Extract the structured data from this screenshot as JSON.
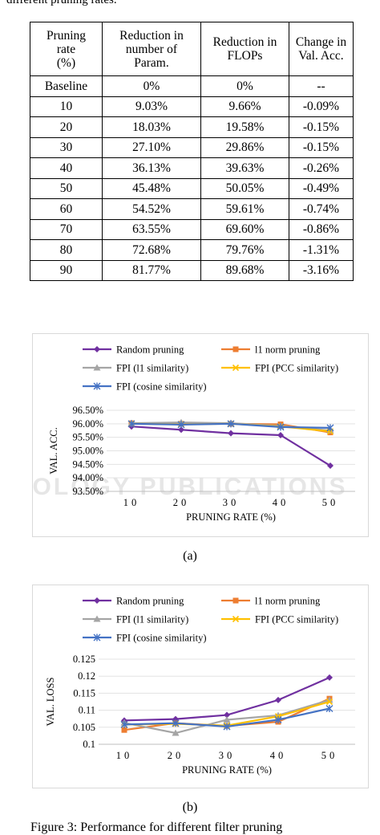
{
  "caption_top": "different pruning rates.",
  "table": {
    "headers": [
      [
        "Pruning",
        "rate",
        "(%)"
      ],
      [
        "Reduction in",
        "number of",
        "Param."
      ],
      [
        "Reduction in",
        "FLOPs"
      ],
      [
        "Change in",
        "Val. Acc."
      ]
    ],
    "rows": [
      [
        "Baseline",
        "0%",
        "0%",
        "--"
      ],
      [
        "10",
        "9.03%",
        "9.66%",
        "-0.09%"
      ],
      [
        "20",
        "18.03%",
        "19.58%",
        "-0.15%"
      ],
      [
        "30",
        "27.10%",
        "29.86%",
        "-0.15%"
      ],
      [
        "40",
        "36.13%",
        "39.63%",
        "-0.26%"
      ],
      [
        "50",
        "45.48%",
        "50.05%",
        "-0.49%"
      ],
      [
        "60",
        "54.52%",
        "59.61%",
        "-0.74%"
      ],
      [
        "70",
        "63.55%",
        "69.60%",
        "-0.86%"
      ],
      [
        "80",
        "72.68%",
        "79.76%",
        "-1.31%"
      ],
      [
        "90",
        "81.77%",
        "89.68%",
        "-3.16%"
      ]
    ]
  },
  "watermark": "OLOGY PUBLICATIONS",
  "chart_data": [
    {
      "type": "line",
      "xlabel": "PRUNING RATE (%)",
      "ylabel": "VAL. ACC.",
      "categories": [
        "10",
        "20",
        "30",
        "40",
        "50"
      ],
      "ylim": [
        93.5,
        96.5
      ],
      "yticks": [
        "93.50%",
        "94.00%",
        "94.50%",
        "95.00%",
        "95.50%",
        "96.00%",
        "96.50%"
      ],
      "legend": "top",
      "series": [
        {
          "name": "Random pruning",
          "color": "#7030a0",
          "marker": "diamond",
          "values": [
            95.9,
            95.78,
            95.65,
            95.58,
            94.45
          ]
        },
        {
          "name": "l1 norm pruning",
          "color": "#ed7d31",
          "marker": "square",
          "values": [
            96.02,
            96.0,
            96.0,
            95.98,
            95.68
          ]
        },
        {
          "name": "FPI (l1 similarity)",
          "color": "#a5a5a5",
          "marker": "triangle",
          "values": [
            96.02,
            96.05,
            96.02,
            95.92,
            95.75
          ]
        },
        {
          "name": "FPI (PCC similarity)",
          "color": "#ffc000",
          "marker": "x",
          "values": [
            96.0,
            95.98,
            96.0,
            95.9,
            95.72
          ]
        },
        {
          "name": "FPI (cosine similarity)",
          "color": "#4472c4",
          "marker": "star",
          "values": [
            96.0,
            95.97,
            96.0,
            95.88,
            95.85
          ]
        }
      ]
    },
    {
      "type": "line",
      "xlabel": "PRUNING RATE (%)",
      "ylabel": "VAL. LOSS",
      "categories": [
        "10",
        "20",
        "30",
        "40",
        "50"
      ],
      "ylim": [
        0.1,
        0.125
      ],
      "yticks": [
        "0.1",
        "0.105",
        "0.11",
        "0.115",
        "0.12",
        "0.125"
      ],
      "legend": "top",
      "series": [
        {
          "name": "Random pruning",
          "color": "#7030a0",
          "marker": "diamond",
          "values": [
            0.107,
            0.1074,
            0.1086,
            0.113,
            0.1196
          ]
        },
        {
          "name": "l1 norm pruning",
          "color": "#ed7d31",
          "marker": "square",
          "values": [
            0.1042,
            0.1062,
            0.1054,
            0.1066,
            0.1134
          ]
        },
        {
          "name": "FPI (l1 similarity)",
          "color": "#a5a5a5",
          "marker": "triangle",
          "values": [
            0.1063,
            0.1033,
            0.1072,
            0.1085,
            0.113
          ]
        },
        {
          "name": "FPI (PCC similarity)",
          "color": "#ffc000",
          "marker": "x",
          "values": [
            0.1058,
            0.106,
            0.1055,
            0.1082,
            0.1125
          ]
        },
        {
          "name": "FPI (cosine similarity)",
          "color": "#4472c4",
          "marker": "star",
          "values": [
            0.1058,
            0.1062,
            0.1052,
            0.1072,
            0.1105
          ]
        }
      ]
    }
  ],
  "subcaptions": [
    "(a)",
    "(b)"
  ],
  "figure_caption": "Figure 3: Performance for different filter pruning"
}
